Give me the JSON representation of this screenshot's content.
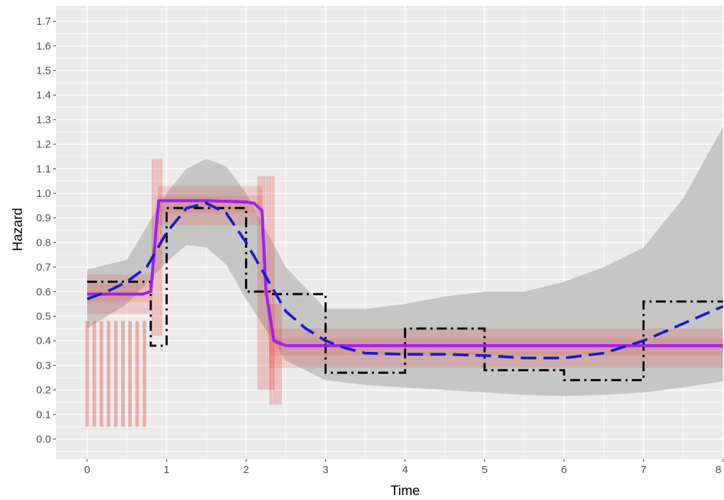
{
  "chart_data": {
    "type": "line",
    "title": "",
    "xlabel": "Time",
    "ylabel": "Hazard",
    "xlim": [
      -0.4,
      8.0
    ],
    "ylim": [
      -0.08,
      1.75
    ],
    "x_ticks": [
      0,
      1,
      2,
      3,
      4,
      5,
      6,
      7,
      8
    ],
    "x_tick_labels": [
      "0",
      "1",
      "2",
      "3",
      "4",
      "5",
      "6",
      "7",
      "8"
    ],
    "y_ticks": [
      0.0,
      0.1,
      0.2,
      0.3,
      0.4,
      0.5,
      0.6,
      0.7,
      0.8,
      0.9,
      1.0,
      1.1,
      1.2,
      1.3,
      1.4,
      1.5,
      1.6,
      1.7
    ],
    "y_tick_labels": [
      "0.0",
      "0.1",
      "0.2",
      "0.3",
      "0.4",
      "0.5",
      "0.6",
      "0.7",
      "0.8",
      "0.9",
      "1.0",
      "1.1",
      "1.2",
      "1.3",
      "1.4",
      "1.5",
      "1.6",
      "1.7"
    ],
    "grid": true,
    "legend": "none",
    "background": "#ebebeb",
    "colors": {
      "band": "#c4c4c4",
      "red_samples": "#e8362f",
      "solid": "#a020f0",
      "dashed": "#1a1acc",
      "dashdot": "#000000"
    },
    "series": [
      {
        "style": "band",
        "x": [
          0,
          0.5,
          1.0,
          1.25,
          1.5,
          1.75,
          2.0,
          2.5,
          3.0,
          3.5,
          4.0,
          4.5,
          5.0,
          5.5,
          6.0,
          6.5,
          7.0,
          7.5,
          8.0
        ],
        "lower": [
          0.45,
          0.55,
          0.72,
          0.79,
          0.78,
          0.71,
          0.57,
          0.32,
          0.24,
          0.22,
          0.21,
          0.2,
          0.19,
          0.18,
          0.175,
          0.18,
          0.19,
          0.21,
          0.235
        ],
        "upper": [
          0.69,
          0.73,
          1.0,
          1.1,
          1.14,
          1.11,
          1.0,
          0.7,
          0.53,
          0.53,
          0.55,
          0.58,
          0.6,
          0.6,
          0.64,
          0.7,
          0.78,
          0.98,
          1.27
        ]
      },
      {
        "style": "solid",
        "x": [
          0,
          0.5,
          0.7,
          0.8,
          0.88,
          0.9,
          1.5,
          2.0,
          2.1,
          2.2,
          2.25,
          2.35,
          2.5,
          3.0,
          4.0,
          5.0,
          6.0,
          7.0,
          8.0
        ],
        "y": [
          0.59,
          0.59,
          0.59,
          0.6,
          0.9,
          0.97,
          0.97,
          0.965,
          0.96,
          0.93,
          0.6,
          0.4,
          0.38,
          0.38,
          0.38,
          0.38,
          0.38,
          0.38,
          0.38
        ]
      },
      {
        "style": "dashed",
        "x": [
          0,
          0.25,
          0.5,
          0.75,
          1.0,
          1.25,
          1.5,
          1.75,
          2.0,
          2.25,
          2.5,
          2.75,
          3.0,
          3.25,
          3.5,
          4.0,
          4.5,
          5.0,
          5.5,
          6.0,
          6.5,
          7.0,
          7.5,
          8.0
        ],
        "y": [
          0.57,
          0.6,
          0.64,
          0.7,
          0.84,
          0.94,
          0.96,
          0.92,
          0.8,
          0.66,
          0.52,
          0.45,
          0.4,
          0.37,
          0.35,
          0.345,
          0.345,
          0.34,
          0.33,
          0.33,
          0.35,
          0.4,
          0.47,
          0.54
        ]
      },
      {
        "style": "dashdot",
        "x": [
          0,
          0.8,
          0.8,
          1.0,
          1.0,
          2.0,
          2.0,
          2.0,
          2.0,
          2.3,
          2.3,
          3.0,
          3.0,
          4.0,
          4.0,
          5.0,
          5.0,
          6.0,
          6.0,
          7.0,
          7.0,
          8.0
        ],
        "y": [
          0.64,
          0.64,
          0.38,
          0.38,
          0.94,
          0.94,
          0.94,
          0.6,
          0.6,
          0.6,
          0.59,
          0.59,
          0.27,
          0.27,
          0.45,
          0.45,
          0.28,
          0.28,
          0.24,
          0.24,
          0.56,
          0.56
        ]
      },
      {
        "style": "red_samples",
        "x": [
          0,
          0.8,
          0.9,
          2.2,
          2.3,
          8.0
        ],
        "y": [
          0.6,
          0.6,
          0.96,
          0.96,
          0.38,
          0.38
        ]
      }
    ]
  }
}
